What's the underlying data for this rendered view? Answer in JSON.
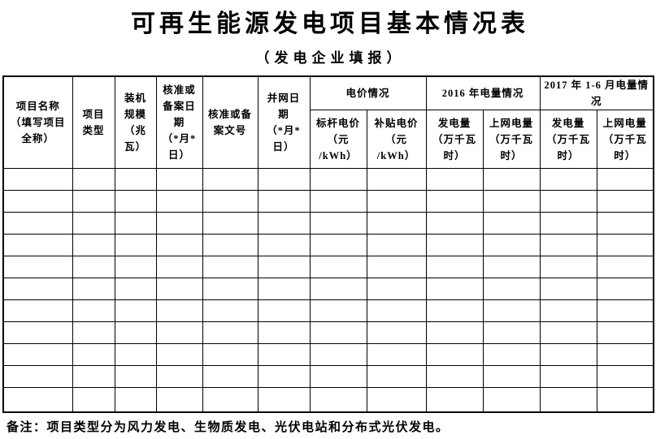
{
  "page": {
    "title": "可再生能源发电项目基本情况表",
    "subtitle": "（发电企业填报）",
    "note": "备注：项目类型分为风力发电、生物质发电、光伏电站和分布式光伏发电。"
  },
  "colors": {
    "text": "#000000",
    "border": "#000000",
    "background": "#ffffff"
  },
  "table": {
    "column_count": 12,
    "empty_row_count": 11,
    "headers": {
      "project_name": "项目名称\n（填写项目\n全称）",
      "project_type": "项目\n类型",
      "installed_capacity": "装机\n规模\n（兆\n瓦）",
      "approval_date": "核准或\n备案日\n期\n（*月*\n日）",
      "approval_doc_no": "核准或备\n案文号",
      "grid_connection_date": "并网日\n期\n（*月*\n日）"
    },
    "groups": {
      "price": "电价情况",
      "y2016": "2016 年电量情况",
      "y2017": "2017 年 1-6 月电量情\n况"
    },
    "subs": {
      "benchmark_price": "标杆电价\n（元\n/kWh）",
      "subsidy_price": "补贴电价\n（元\n/kWh）",
      "generation_2016": "发电量\n（万千瓦\n时）",
      "ongrid_2016": "上网电量\n（万千瓦\n时）",
      "generation_2017": "发电量\n（万千瓦\n时）",
      "ongrid_2017": "上网电量\n（万千瓦\n时）"
    }
  }
}
